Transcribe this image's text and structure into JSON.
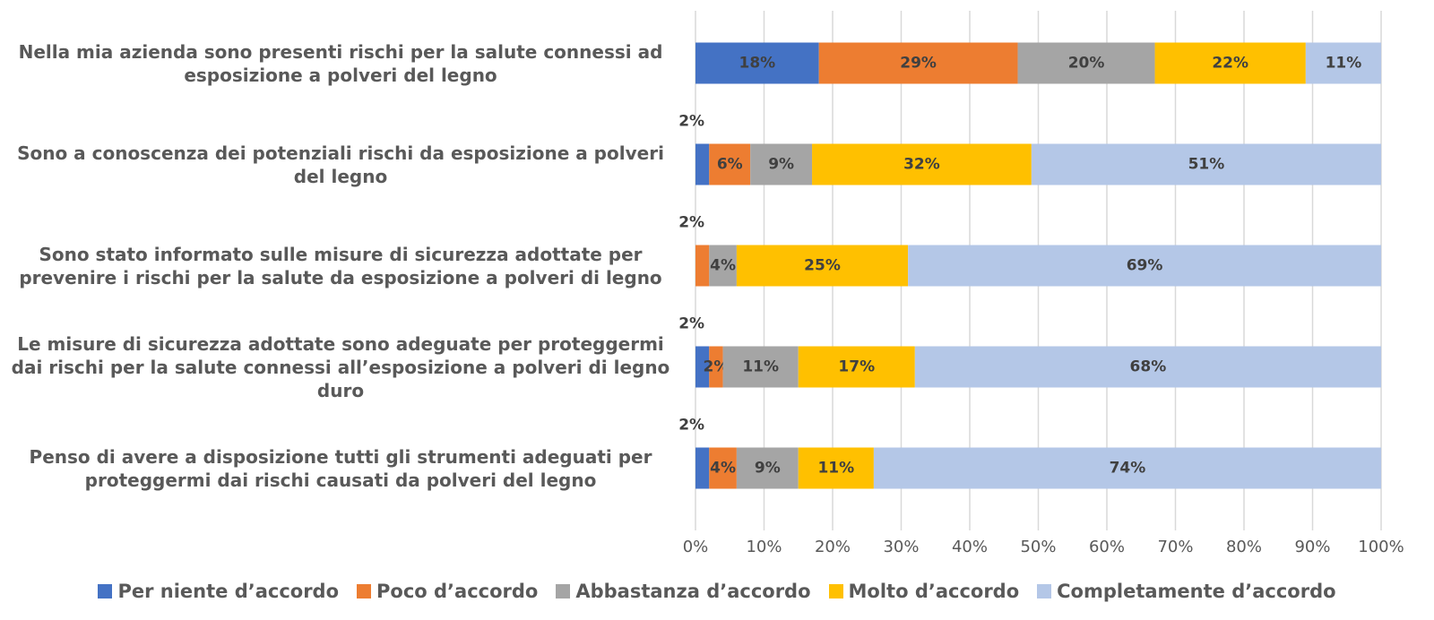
{
  "chart_data": {
    "type": "stacked_barh",
    "categories": [
      "Nella mia azienda sono presenti rischi per la salute connessi ad esposizione a polveri del legno",
      "Sono a conoscenza dei potenziali rischi da esposizione a polveri del legno",
      "Sono stato informato sulle misure di sicurezza adottate per prevenire i rischi per la salute da esposizione a polveri di legno",
      "Le misure di sicurezza adottate  sono adeguate per proteggermi dai rischi per la salute connessi all’esposizione a polveri di legno duro",
      "Penso di avere a disposizione tutti gli strumenti adeguati per proteggermi dai rischi causati da polveri del legno"
    ],
    "series": [
      {
        "name": "Per niente d’accordo",
        "color": "#4472C4",
        "values": [
          18,
          2,
          0,
          2,
          2
        ],
        "value_labels": [
          "18%",
          "2%",
          null,
          "2%",
          "2%"
        ]
      },
      {
        "name": "Poco d’accordo",
        "color": "#ED7D31",
        "values": [
          29,
          6,
          2,
          2,
          4
        ],
        "value_labels": [
          "29%",
          "6%",
          "2%",
          "2%",
          "4%"
        ]
      },
      {
        "name": "Abbastanza d’accordo",
        "color": "#A5A5A5",
        "values": [
          20,
          9,
          4,
          11,
          9
        ],
        "value_labels": [
          "20%",
          "9%",
          "4%",
          "11%",
          "9%"
        ]
      },
      {
        "name": "Molto d’accordo",
        "color": "#FFC000",
        "values": [
          22,
          32,
          25,
          17,
          11
        ],
        "value_labels": [
          "22%",
          "32%",
          "25%",
          "17%",
          "11%"
        ]
      },
      {
        "name": "Completamente d’accordo",
        "color": "#B4C7E7",
        "values": [
          11,
          51,
          69,
          68,
          74
        ],
        "value_labels": [
          "11%",
          "51%",
          "69%",
          "68%",
          "74%"
        ]
      }
    ],
    "xlim": [
      0,
      100
    ],
    "xticks": [
      {
        "value": 0,
        "label": "0%"
      },
      {
        "value": 10,
        "label": "10%"
      },
      {
        "value": 20,
        "label": "20%"
      },
      {
        "value": 30,
        "label": "30%"
      },
      {
        "value": 40,
        "label": "40%"
      },
      {
        "value": 50,
        "label": "50%"
      },
      {
        "value": 60,
        "label": "60%"
      },
      {
        "value": 70,
        "label": "70%"
      },
      {
        "value": 80,
        "label": "80%"
      },
      {
        "value": 90,
        "label": "90%"
      },
      {
        "value": 100,
        "label": "100%"
      }
    ],
    "grid": true,
    "legend": "bottom"
  }
}
